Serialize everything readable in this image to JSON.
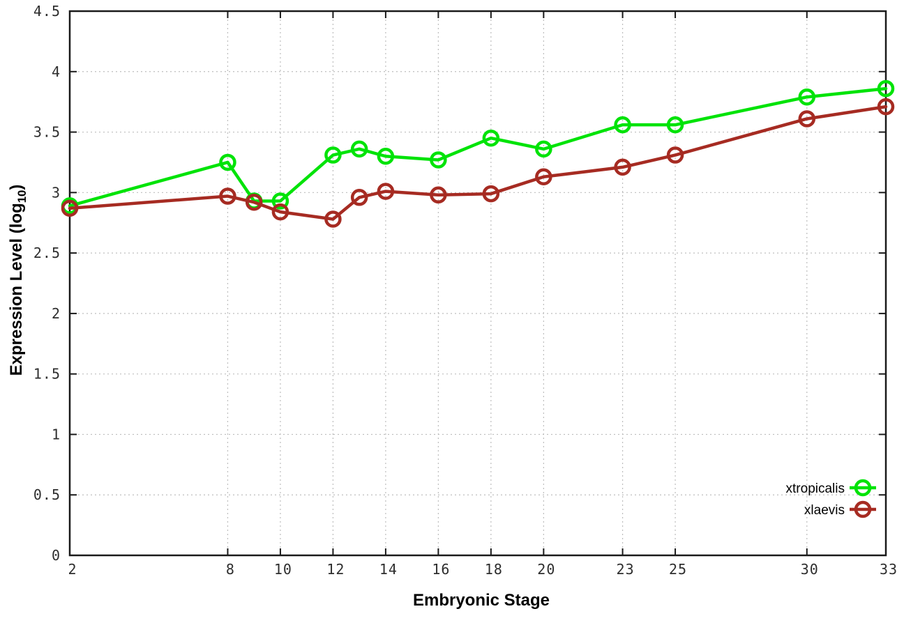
{
  "page": {
    "background": "#ffffff"
  },
  "labels": {
    "x": "Embryonic Stage",
    "y_main": "Expression Level (log",
    "y_sub": "10",
    "y_close": ")"
  },
  "chart_data": {
    "type": "line",
    "title": "",
    "xlabel": "Embryonic Stage",
    "ylabel": "Expression Level (log10)",
    "xlim": [
      2,
      33
    ],
    "ylim": [
      0,
      4.5
    ],
    "grid": true,
    "legend_position": "bottom-right",
    "x_ticks": {
      "values": [
        2,
        8,
        10,
        12,
        14,
        16,
        18,
        20,
        23,
        25,
        30,
        33
      ],
      "labels": [
        "2",
        "8",
        "10",
        "12",
        "14",
        "16",
        "18",
        "20",
        "23",
        "25",
        "30",
        "33"
      ]
    },
    "y_ticks": {
      "values": [
        0,
        0.5,
        1,
        1.5,
        2,
        2.5,
        3,
        3.5,
        4,
        4.5
      ],
      "labels": [
        "0",
        "0.5",
        "1",
        "1.5",
        "2",
        "2.5",
        "3",
        "3.5",
        "4",
        "4.5"
      ]
    },
    "x": [
      2,
      8,
      9,
      10,
      12,
      13,
      14,
      16,
      18,
      20,
      23,
      25,
      30,
      33
    ],
    "series": [
      {
        "name": "xtropicalis",
        "color": "#00e308",
        "marker": "open-circle",
        "values": [
          2.89,
          3.25,
          2.93,
          2.93,
          3.31,
          3.36,
          3.3,
          3.27,
          3.45,
          3.36,
          3.56,
          3.56,
          3.79,
          3.86
        ]
      },
      {
        "name": "xlaevis",
        "color": "#a62b22",
        "marker": "open-circle",
        "values": [
          2.87,
          2.97,
          2.92,
          2.84,
          2.78,
          2.96,
          3.01,
          2.98,
          2.99,
          3.13,
          3.21,
          3.31,
          3.61,
          3.71
        ]
      }
    ],
    "colors": {
      "grid": "#bdbdbd",
      "border": "#1a1a1a",
      "tick_label": "#2e2e2e"
    }
  }
}
